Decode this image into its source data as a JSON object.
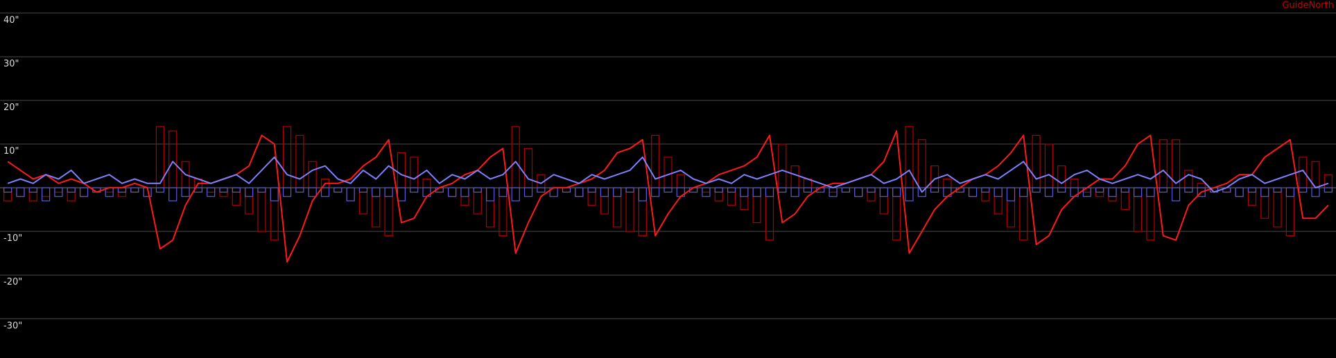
{
  "chart_data": {
    "type": "line",
    "label": "GuideNorth",
    "label_color": "#cc0000",
    "background": "#000000",
    "grid": true,
    "grid_color": "#4a4a4a",
    "ylim": [
      -39,
      43
    ],
    "yticks": [
      {
        "value": 40,
        "label": "40\""
      },
      {
        "value": 30,
        "label": "30\""
      },
      {
        "value": 20,
        "label": "20\""
      },
      {
        "value": 10,
        "label": "10\""
      },
      {
        "value": -10,
        "label": "-10\""
      },
      {
        "value": -20,
        "label": "-20\""
      },
      {
        "value": -30,
        "label": "-30\""
      }
    ],
    "series": [
      {
        "type": "bar",
        "color": "#b00000",
        "values": [
          -3,
          -2,
          -3,
          -2,
          -1,
          -3,
          -2,
          -1,
          -1,
          -2,
          -1,
          -2,
          14,
          13,
          6,
          2,
          -1,
          -2,
          -4,
          -6,
          -10,
          -12,
          14,
          12,
          6,
          2,
          -1,
          -3,
          -6,
          -9,
          -11,
          8,
          7,
          2,
          -1,
          -2,
          -4,
          -6,
          -9,
          -11,
          14,
          9,
          3,
          0,
          -1,
          -2,
          -4,
          -6,
          -9,
          -10,
          -11,
          12,
          7,
          3,
          0,
          -1,
          -3,
          -4,
          -5,
          -8,
          -12,
          10,
          5,
          2,
          0,
          -1,
          -1,
          -2,
          -3,
          -6,
          -12,
          14,
          11,
          5,
          2,
          -1,
          -2,
          -3,
          -6,
          -9,
          -12,
          12,
          10,
          5,
          2,
          -1,
          -2,
          -3,
          -5,
          -10,
          -12,
          11,
          11,
          4,
          1,
          -1,
          -1,
          -2,
          -4,
          -7,
          -9,
          -11,
          7,
          6,
          3
        ]
      },
      {
        "type": "bar",
        "color": "#5a5ae0",
        "values": [
          -1,
          -2,
          -1,
          -3,
          -2,
          -1,
          -2,
          -1,
          -2,
          -1,
          -1,
          -2,
          -1,
          -3,
          -2,
          -1,
          -2,
          -1,
          -1,
          -2,
          -1,
          -3,
          -2,
          -1,
          -2,
          -2,
          -1,
          -3,
          -1,
          -2,
          -2,
          -3,
          -1,
          -2,
          -1,
          -2,
          -2,
          -1,
          -3,
          -2,
          -3,
          -2,
          -1,
          -2,
          -1,
          -2,
          -1,
          -2,
          -2,
          -1,
          -3,
          -2,
          -1,
          -2,
          -1,
          -2,
          -1,
          -1,
          -2,
          -2,
          -2,
          -1,
          -2,
          -1,
          -1,
          -2,
          -1,
          -2,
          -1,
          -2,
          -2,
          -3,
          -2,
          -1,
          -2,
          -1,
          -2,
          -1,
          -2,
          -3,
          -2,
          -1,
          -2,
          -1,
          -2,
          -2,
          -1,
          -2,
          -1,
          -2,
          -2,
          -1,
          -3,
          -1,
          -2,
          -1,
          -1,
          -2,
          -1,
          -2,
          -1,
          -2,
          -1,
          -2,
          -1
        ]
      },
      {
        "type": "line",
        "color": "#ff1a1a",
        "values": [
          6,
          4,
          2,
          3,
          1,
          2,
          1,
          -1,
          0,
          0,
          1,
          0,
          -14,
          -12,
          -4,
          1,
          1,
          2,
          3,
          5,
          12,
          10,
          -17,
          -11,
          -3,
          1,
          1,
          2,
          5,
          7,
          11,
          -8,
          -7,
          -2,
          0,
          1,
          3,
          4,
          7,
          9,
          -15,
          -8,
          -2,
          0,
          0,
          1,
          2,
          4,
          8,
          9,
          11,
          -11,
          -6,
          -2,
          0,
          1,
          3,
          4,
          5,
          7,
          12,
          -8,
          -6,
          -2,
          0,
          1,
          1,
          2,
          3,
          6,
          13,
          -15,
          -10,
          -5,
          -2,
          0,
          2,
          3,
          5,
          8,
          12,
          -13,
          -11,
          -5,
          -2,
          0,
          2,
          2,
          5,
          10,
          12,
          -11,
          -12,
          -4,
          -1,
          0,
          1,
          3,
          3,
          7,
          9,
          11,
          -7,
          -7,
          -4
        ]
      },
      {
        "type": "line",
        "color": "#8080ff",
        "values": [
          1,
          2,
          1,
          3,
          2,
          4,
          1,
          2,
          3,
          1,
          2,
          1,
          1,
          6,
          3,
          2,
          1,
          2,
          3,
          1,
          4,
          7,
          3,
          2,
          4,
          5,
          2,
          1,
          4,
          2,
          5,
          3,
          2,
          4,
          1,
          3,
          2,
          4,
          2,
          3,
          6,
          2,
          1,
          3,
          2,
          1,
          3,
          2,
          3,
          4,
          7,
          2,
          3,
          4,
          2,
          1,
          2,
          1,
          3,
          2,
          3,
          4,
          3,
          2,
          1,
          0,
          1,
          2,
          3,
          1,
          2,
          4,
          -1,
          2,
          3,
          1,
          2,
          3,
          2,
          4,
          6,
          2,
          3,
          1,
          3,
          4,
          2,
          1,
          2,
          3,
          2,
          4,
          1,
          3,
          2,
          -1,
          0,
          2,
          3,
          1,
          2,
          3,
          4,
          0,
          1
        ]
      }
    ]
  }
}
